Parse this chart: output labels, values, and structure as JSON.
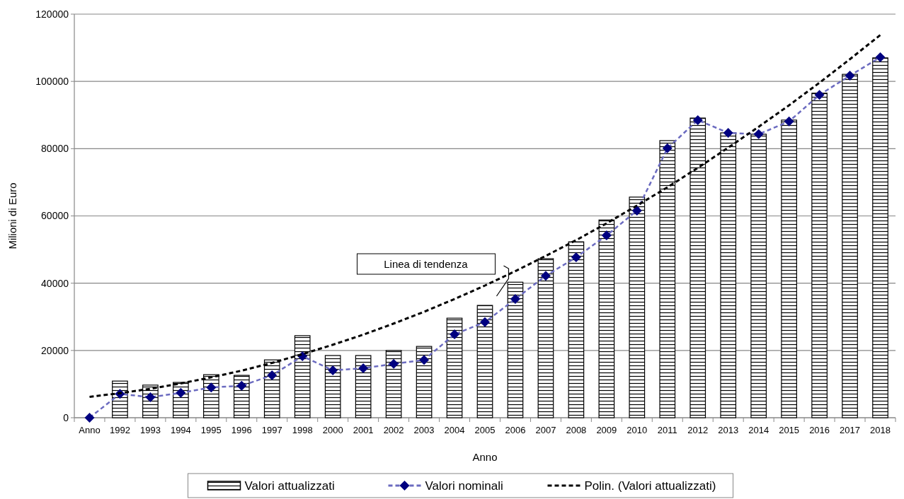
{
  "chart_data": {
    "type": "bar",
    "xlabel": "Anno",
    "ylabel": "Milioni di Euro",
    "categories": [
      "Anno",
      "1992",
      "1993",
      "1994",
      "1995",
      "1996",
      "1997",
      "1998",
      "2000",
      "2001",
      "2002",
      "2003",
      "2004",
      "2005",
      "2006",
      "2007",
      "2008",
      "2009",
      "2010",
      "2011",
      "2012",
      "2013",
      "2014",
      "2015",
      "2016",
      "2017",
      "2018"
    ],
    "series": [
      {
        "name": "Valori attualizzati",
        "color": "#000000",
        "values": [
          null,
          10900,
          9700,
          10500,
          12800,
          12600,
          17200,
          24400,
          18500,
          18500,
          20000,
          21200,
          29600,
          33400,
          40300,
          47300,
          52300,
          58800,
          65600,
          82400,
          89100,
          84700,
          84300,
          88500,
          96500,
          102100,
          107000
        ]
      },
      {
        "name": "Valori nominali",
        "type": "line",
        "color": "#000080",
        "marker": "diamond",
        "line_style": "dashed",
        "values": [
          0,
          7100,
          6100,
          7400,
          9000,
          9500,
          12600,
          18300,
          14100,
          14700,
          16000,
          17200,
          24800,
          28400,
          35300,
          42200,
          47700,
          54200,
          61600,
          80100,
          88500,
          84700,
          84300,
          88100,
          96000,
          101700,
          107200
        ]
      },
      {
        "name": "Polin. (Valori attualizzati)",
        "type": "line",
        "color": "#000000",
        "marker": "none",
        "line_style": "dashed",
        "values": [
          6200,
          7300,
          8600,
          10200,
          12000,
          14000,
          16300,
          18900,
          21700,
          24700,
          28000,
          31500,
          35300,
          39300,
          43600,
          48100,
          52800,
          57800,
          63100,
          68500,
          74300,
          80300,
          86500,
          92900,
          99600,
          106600,
          113800
        ]
      }
    ],
    "ylim": [
      0,
      120000
    ],
    "yticks": [
      0,
      20000,
      40000,
      60000,
      80000,
      100000,
      120000
    ],
    "grid": "y",
    "legend": "bottom",
    "annotations": [
      {
        "text": "Linea di tendenza",
        "x": "2005",
        "y": 39300
      }
    ]
  }
}
